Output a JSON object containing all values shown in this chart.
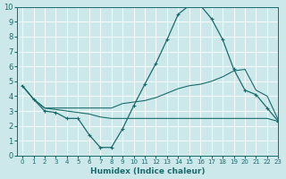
{
  "xlabel": "Humidex (Indice chaleur)",
  "bg_color": "#cce8ea",
  "grid_color": "#ffffff",
  "line_color": "#1a6b6b",
  "xlim": [
    -0.5,
    23
  ],
  "ylim": [
    0,
    10
  ],
  "xticks": [
    0,
    1,
    2,
    3,
    4,
    5,
    6,
    7,
    8,
    9,
    10,
    11,
    12,
    13,
    14,
    15,
    16,
    17,
    18,
    19,
    20,
    21,
    22,
    23
  ],
  "yticks": [
    0,
    1,
    2,
    3,
    4,
    5,
    6,
    7,
    8,
    9,
    10
  ],
  "line1_x": [
    0,
    1,
    2,
    3,
    4,
    5,
    6,
    7,
    8,
    9,
    10,
    11,
    12,
    13,
    14,
    15,
    16,
    17,
    18,
    19,
    20,
    21,
    22,
    23
  ],
  "line1_y": [
    4.7,
    3.8,
    3.0,
    2.9,
    2.5,
    2.5,
    1.4,
    0.55,
    0.55,
    1.8,
    3.35,
    4.8,
    6.2,
    7.8,
    9.5,
    10.1,
    10.1,
    9.2,
    7.8,
    5.8,
    4.4,
    4.1,
    3.2,
    2.3
  ],
  "line2_x": [
    0,
    1,
    2,
    3,
    4,
    5,
    6,
    7,
    8,
    9,
    10,
    11,
    12,
    13,
    14,
    15,
    16,
    17,
    18,
    19,
    20,
    21,
    22,
    23
  ],
  "line2_y": [
    4.7,
    3.8,
    3.2,
    3.2,
    3.2,
    3.2,
    3.2,
    3.2,
    3.2,
    3.5,
    3.6,
    3.7,
    3.9,
    4.2,
    4.5,
    4.7,
    4.8,
    5.0,
    5.3,
    5.7,
    5.8,
    4.4,
    4.0,
    2.4
  ],
  "line3_x": [
    0,
    1,
    2,
    3,
    4,
    5,
    6,
    7,
    8,
    9,
    10,
    11,
    12,
    13,
    14,
    15,
    16,
    17,
    18,
    19,
    20,
    21,
    22,
    23
  ],
  "line3_y": [
    4.7,
    3.8,
    3.2,
    3.1,
    3.0,
    2.9,
    2.8,
    2.6,
    2.5,
    2.5,
    2.5,
    2.5,
    2.5,
    2.5,
    2.5,
    2.5,
    2.5,
    2.5,
    2.5,
    2.5,
    2.5,
    2.5,
    2.5,
    2.3
  ]
}
